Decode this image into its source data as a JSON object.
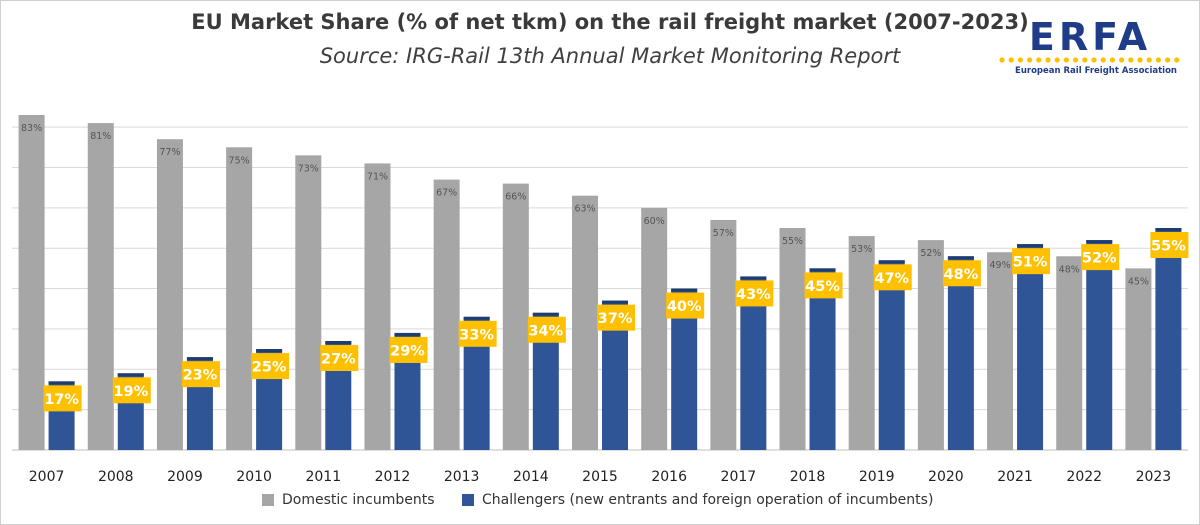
{
  "colors": {
    "incumbents": "#a6a6a6",
    "challengers": "#2f5597",
    "label_box": "#ffc000",
    "grid": "#d9d9d9",
    "logo_blue": "#1f3c88",
    "logo_yellow": "#ffc000"
  },
  "logo": {
    "text": "ERFA",
    "caption": "European Rail Freight Association"
  },
  "chart_data": {
    "type": "bar",
    "title": "EU Market Share (% of net tkm) on the rail freight market (2007-2023)",
    "subtitle": "Source: IRG-Rail 13th Annual Market Monitoring Report",
    "categories": [
      "2007",
      "2008",
      "2009",
      "2010",
      "2011",
      "2012",
      "2013",
      "2014",
      "2015",
      "2016",
      "2017",
      "2018",
      "2019",
      "2020",
      "2021",
      "2022",
      "2023"
    ],
    "series": [
      {
        "name": "Domestic incumbents",
        "values": [
          83,
          81,
          77,
          75,
          73,
          71,
          67,
          66,
          63,
          60,
          57,
          55,
          53,
          52,
          49,
          48,
          45
        ]
      },
      {
        "name": "Challengers (new entrants and foreign operation of incumbents)",
        "values": [
          17,
          19,
          23,
          25,
          27,
          29,
          33,
          34,
          37,
          40,
          43,
          45,
          47,
          48,
          51,
          52,
          55
        ]
      }
    ],
    "value_labels": {
      "incumbents": [
        "83%",
        "81%",
        "77%",
        "75%",
        "73%",
        "71%",
        "67%",
        "66%",
        "63%",
        "60%",
        "57%",
        "55%",
        "53%",
        "52%",
        "49%",
        "48%",
        "45%"
      ],
      "challengers": [
        "17%",
        "19%",
        "23%",
        "25%",
        "27%",
        "29%",
        "33%",
        "34%",
        "37%",
        "40%",
        "43%",
        "45%",
        "47%",
        "48%",
        "51%",
        "52%",
        "55%"
      ]
    },
    "ylim": [
      0,
      85
    ],
    "grid": true,
    "legend_position": "bottom"
  }
}
